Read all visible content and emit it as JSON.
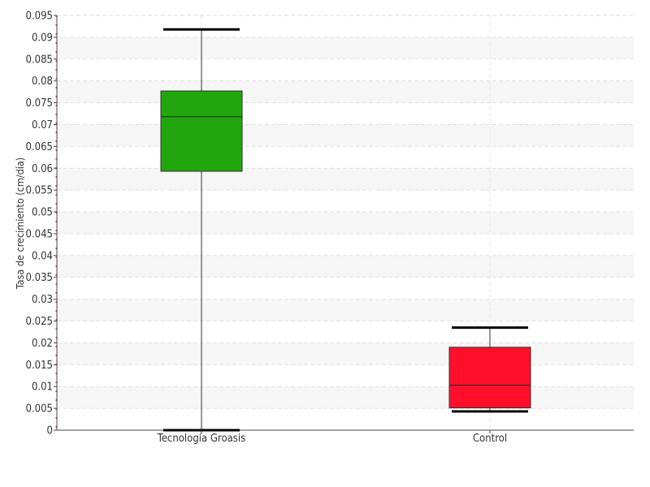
{
  "chart_data": {
    "type": "boxplot",
    "title": "",
    "xlabel": "",
    "ylabel": "Tasa de crecimiento (cm/día)",
    "ylim": [
      0,
      0.095
    ],
    "y_ticks": [
      "0",
      "0.005",
      "0.01",
      "0.015",
      "0.02",
      "0.025",
      "0.03",
      "0.035",
      "0.04",
      "0.045",
      "0.05",
      "0.055",
      "0.06",
      "0.065",
      "0.07",
      "0.075",
      "0.08",
      "0.085",
      "0.09",
      "0.095"
    ],
    "grid": true,
    "legend": "none",
    "categories": [
      "Tecnología Groasis",
      "Control"
    ],
    "boxes": [
      {
        "category": "Tecnología Groasis",
        "min": 0.0,
        "q1": 0.0593,
        "median": 0.0718,
        "q3": 0.0777,
        "max": 0.0918,
        "color": "#22a60e"
      },
      {
        "category": "Control",
        "min": 0.0043,
        "q1": 0.0051,
        "median": 0.0103,
        "q3": 0.019,
        "max": 0.0235,
        "color": "#ff0f2a"
      }
    ]
  }
}
